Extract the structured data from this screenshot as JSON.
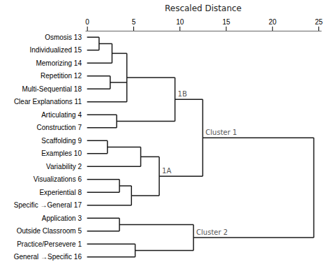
{
  "chart_data": {
    "type": "dendrogram",
    "x_label": "Rescaled Distance",
    "categories": [
      "Osmosis 13",
      "Individualized 15",
      "Memorizing 14",
      "Repetition 12",
      "Multi-Sequential 18",
      "Clear Explanations 11",
      "Articulating 4",
      "Construction 7",
      "Scaffolding 9",
      "Examples 10",
      "Variability 2",
      "Visualizations 6",
      "Experiential 8",
      "Specific →General 17",
      "Application 3",
      "Outside Classroom 5",
      "Practice/Persevere 1",
      "General →Specific 16"
    ],
    "xlim": [
      -0.2,
      25.3
    ],
    "xticks": [
      0,
      5,
      10,
      15,
      20,
      25
    ],
    "color": "#1a1a1a",
    "merges": [
      {
        "children": [
          {
            "leaf": 0
          },
          {
            "leaf": 1
          }
        ],
        "height": 1.3
      },
      {
        "children": [
          {
            "merge": 0
          },
          {
            "leaf": 2
          }
        ],
        "height": 2.7
      },
      {
        "children": [
          {
            "leaf": 3
          },
          {
            "leaf": 4
          }
        ],
        "height": 2.5
      },
      {
        "children": [
          {
            "merge": 1
          },
          {
            "merge": 2
          },
          {
            "leaf": 5
          }
        ],
        "height": 4.3
      },
      {
        "children": [
          {
            "leaf": 6
          },
          {
            "leaf": 7
          }
        ],
        "height": 3.2
      },
      {
        "children": [
          {
            "merge": 3
          },
          {
            "merge": 4
          }
        ],
        "height": 9.5,
        "label": "1B"
      },
      {
        "children": [
          {
            "leaf": 8
          },
          {
            "leaf": 9
          }
        ],
        "height": 2.2
      },
      {
        "children": [
          {
            "merge": 6
          },
          {
            "leaf": 10
          }
        ],
        "height": 5.8
      },
      {
        "children": [
          {
            "leaf": 11
          },
          {
            "leaf": 12
          }
        ],
        "height": 3.5
      },
      {
        "children": [
          {
            "merge": 8
          },
          {
            "leaf": 13
          }
        ],
        "height": 4.8
      },
      {
        "children": [
          {
            "merge": 7
          },
          {
            "merge": 9
          }
        ],
        "height": 7.8,
        "label": "1A"
      },
      {
        "children": [
          {
            "merge": 5
          },
          {
            "merge": 10
          }
        ],
        "height": 12.5,
        "label": "Cluster 1"
      },
      {
        "children": [
          {
            "leaf": 14
          },
          {
            "leaf": 15
          }
        ],
        "height": 3.5
      },
      {
        "children": [
          {
            "leaf": 16
          },
          {
            "leaf": 17
          }
        ],
        "height": 5.2
      },
      {
        "children": [
          {
            "merge": 12
          },
          {
            "merge": 13
          }
        ],
        "height": 11.5,
        "label": "Cluster 2"
      },
      {
        "children": [
          {
            "merge": 11
          },
          {
            "merge": 14
          }
        ],
        "height": 24.5
      }
    ]
  }
}
